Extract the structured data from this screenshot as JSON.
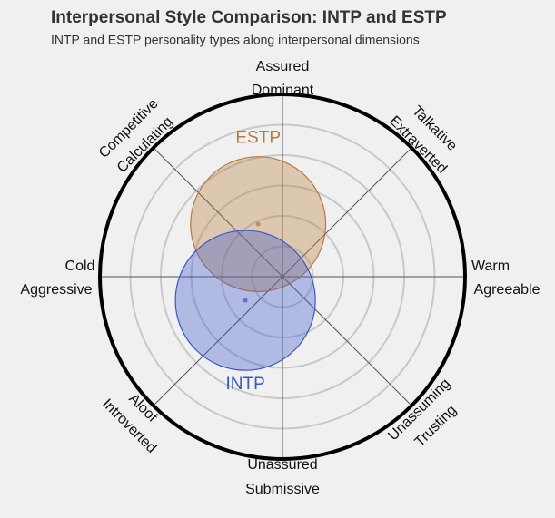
{
  "chart_data": {
    "type": "circumplex",
    "title": "Interpersonal Style Comparison: INTP and ESTP",
    "subtitle": "INTP and ESTP personality types along interpersonal dimensions",
    "xlim": [
      -6,
      6
    ],
    "ylim": [
      -6,
      6
    ],
    "rticks": [
      1,
      2,
      3,
      4,
      5,
      6
    ],
    "grid": true,
    "axis_labels": [
      {
        "outer": "Assured",
        "inner": "Dominant"
      },
      {
        "outer": "Talkative",
        "inner": "Extraverted"
      },
      {
        "outer": "Warm",
        "inner": "Agreeable"
      },
      {
        "outer": "Unassuming",
        "inner": "Trusting"
      },
      {
        "outer": "Unassured",
        "inner": "Submissive"
      },
      {
        "outer": "Aloof",
        "inner": "Introverted"
      },
      {
        "outer": "Cold",
        "inner": "Aggressive"
      },
      {
        "outer": "Competitive",
        "inner": "Calculating"
      }
    ],
    "series": [
      {
        "name": "ESTP",
        "color": "#b87a3c",
        "x": -0.8,
        "y": 1.73,
        "r": 2.22
      },
      {
        "name": "INTP",
        "color": "#3b56c9",
        "x": -1.22,
        "y": -0.78,
        "r": 2.3
      }
    ]
  }
}
